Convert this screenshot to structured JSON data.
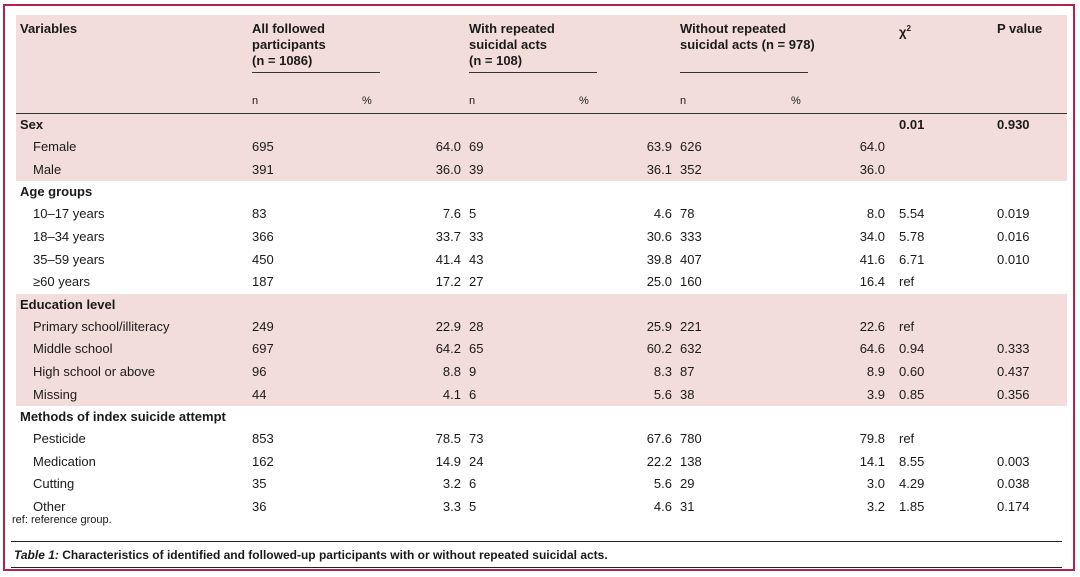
{
  "header": {
    "variables": "Variables",
    "all_followed": [
      "All followed",
      "participants",
      "(n = 1086)"
    ],
    "with_repeated": [
      "With repeated",
      "suicidal acts",
      "(n = 108)"
    ],
    "without_repeated": [
      "Without repeated",
      "suicidal acts (n = 978)"
    ],
    "chi2_symbol": "χ",
    "chi2_sup": "2",
    "pvalue": "P value",
    "n_label": "n",
    "pct_label": "%"
  },
  "groups": [
    {
      "title": "Sex",
      "chi2": "0.01",
      "p": "0.930",
      "shade": "pink",
      "rows": [
        {
          "label": "Female",
          "all_n": "695",
          "all_pct": "64.0",
          "rep_n": "69",
          "rep_pct": "63.9",
          "non_n": "626",
          "non_pct": "64.0",
          "chi2": "",
          "p": ""
        },
        {
          "label": "Male",
          "all_n": "391",
          "all_pct": "36.0",
          "rep_n": "39",
          "rep_pct": "36.1",
          "non_n": "352",
          "non_pct": "36.0",
          "chi2": "",
          "p": ""
        }
      ]
    },
    {
      "title": "Age groups",
      "chi2": "",
      "p": "",
      "shade": "white",
      "rows": [
        {
          "label": "10–17 years",
          "all_n": "83",
          "all_pct": "7.6",
          "rep_n": "5",
          "rep_pct": "4.6",
          "non_n": "78",
          "non_pct": "8.0",
          "chi2": "5.54",
          "p": "0.019"
        },
        {
          "label": "18–34 years",
          "all_n": "366",
          "all_pct": "33.7",
          "rep_n": "33",
          "rep_pct": "30.6",
          "non_n": "333",
          "non_pct": "34.0",
          "chi2": "5.78",
          "p": "0.016"
        },
        {
          "label": "35–59 years",
          "all_n": "450",
          "all_pct": "41.4",
          "rep_n": "43",
          "rep_pct": "39.8",
          "non_n": "407",
          "non_pct": "41.6",
          "chi2": "6.71",
          "p": "0.010"
        },
        {
          "label": "≥60 years",
          "all_n": "187",
          "all_pct": "17.2",
          "rep_n": "27",
          "rep_pct": "25.0",
          "non_n": "160",
          "non_pct": "16.4",
          "chi2": "ref",
          "p": ""
        }
      ]
    },
    {
      "title": "Education level",
      "chi2": "",
      "p": "",
      "shade": "pink",
      "rows": [
        {
          "label": "Primary school/illiteracy",
          "all_n": "249",
          "all_pct": "22.9",
          "rep_n": "28",
          "rep_pct": "25.9",
          "non_n": "221",
          "non_pct": "22.6",
          "chi2": "ref",
          "p": ""
        },
        {
          "label": "Middle school",
          "all_n": "697",
          "all_pct": "64.2",
          "rep_n": "65",
          "rep_pct": "60.2",
          "non_n": "632",
          "non_pct": "64.6",
          "chi2": "0.94",
          "p": "0.333"
        },
        {
          "label": "High school or above",
          "all_n": "96",
          "all_pct": "8.8",
          "rep_n": "9",
          "rep_pct": "8.3",
          "non_n": "87",
          "non_pct": "8.9",
          "chi2": "0.60",
          "p": "0.437"
        },
        {
          "label": "Missing",
          "all_n": "44",
          "all_pct": "4.1",
          "rep_n": "6",
          "rep_pct": "5.6",
          "non_n": "38",
          "non_pct": "3.9",
          "chi2": "0.85",
          "p": "0.356"
        }
      ]
    },
    {
      "title": "Methods of index suicide attempt",
      "chi2": "",
      "p": "",
      "shade": "white",
      "rows": [
        {
          "label": "Pesticide",
          "all_n": "853",
          "all_pct": "78.5",
          "rep_n": "73",
          "rep_pct": "67.6",
          "non_n": "780",
          "non_pct": "79.8",
          "chi2": "ref",
          "p": ""
        },
        {
          "label": "Medication",
          "all_n": "162",
          "all_pct": "14.9",
          "rep_n": "24",
          "rep_pct": "22.2",
          "non_n": "138",
          "non_pct": "14.1",
          "chi2": "8.55",
          "p": "0.003"
        },
        {
          "label": "Cutting",
          "all_n": "35",
          "all_pct": "3.2",
          "rep_n": "6",
          "rep_pct": "5.6",
          "non_n": "29",
          "non_pct": "3.0",
          "chi2": "4.29",
          "p": "0.038"
        },
        {
          "label": "Other",
          "all_n": "36",
          "all_pct": "3.3",
          "rep_n": "5",
          "rep_pct": "4.6",
          "non_n": "31",
          "non_pct": "3.2",
          "chi2": "1.85",
          "p": "0.174"
        }
      ]
    }
  ],
  "footnote": "ref: reference group.",
  "caption": {
    "label": "Table 1:",
    "text": "Characteristics of identified and followed-up participants with or without repeated suicidal acts."
  },
  "colors": {
    "frame": "#b0244c",
    "shade": "#f3ddda"
  }
}
